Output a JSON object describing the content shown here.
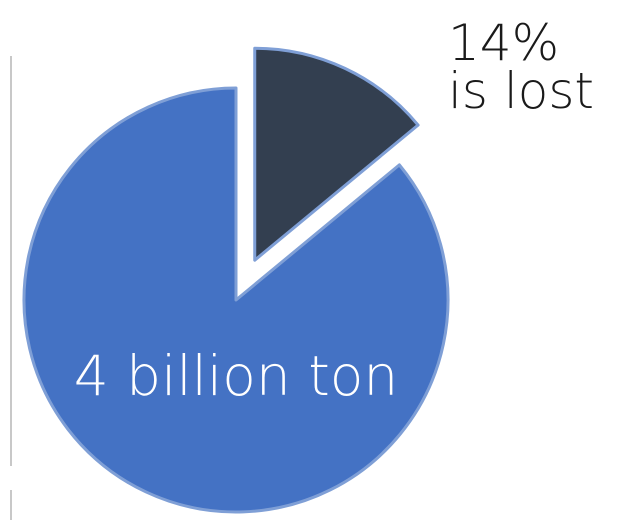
{
  "chart_data": {
    "type": "pie",
    "exploded": true,
    "slices": [
      {
        "label_lines": [
          "14%",
          "is lost"
        ],
        "value": 14,
        "color": "#333f50"
      },
      {
        "label_lines": [
          "4 billion ton"
        ],
        "value": 86,
        "color": "#4472c4"
      }
    ],
    "slice_edge_color": "#7f9fd6",
    "label_colors": {
      "outside": "#1a1a1a",
      "inside": "#ffffff"
    }
  }
}
